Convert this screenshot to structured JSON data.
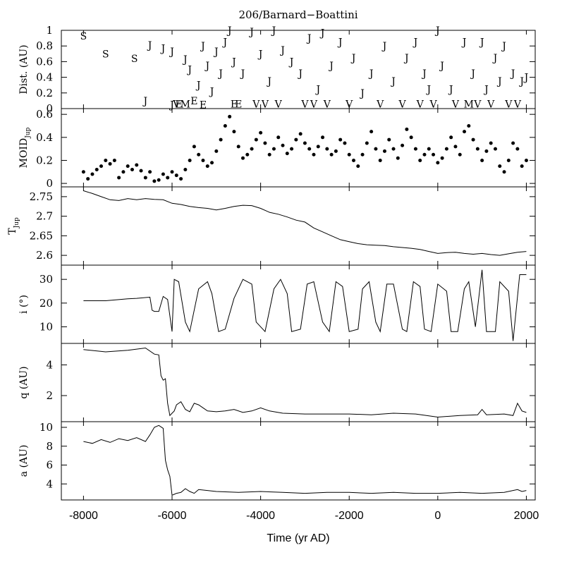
{
  "chart_data": {
    "type": "line",
    "title": "206/Barnard−Boattini",
    "xlabel": "Time (yr AD)",
    "xlim": [
      -8500,
      2200
    ],
    "xticks": [
      -8000,
      -6000,
      -4000,
      -2000,
      0,
      2000
    ],
    "xtick_labels": [
      "-8000",
      "-6000",
      "-4000",
      "-2000",
      "0",
      "2000"
    ],
    "grid": false,
    "panels": [
      {
        "id": "dist",
        "type": "scatter",
        "ylabel": "Dist. (AU)",
        "ylim": [
          0,
          1
        ],
        "yticks": [
          0,
          0.2,
          0.4,
          0.6,
          0.8,
          1
        ],
        "ytick_labels": [
          "0",
          "0.2",
          "0.4",
          "0.6",
          "0.8",
          "1"
        ],
        "encounters": [
          {
            "t": -8000,
            "d": 0.93,
            "p": "S"
          },
          {
            "t": -7500,
            "d": 0.7,
            "p": "S"
          },
          {
            "t": -6850,
            "d": 0.64,
            "p": "S"
          },
          {
            "t": -6600,
            "d": 0.1,
            "p": "J"
          },
          {
            "t": -6500,
            "d": 0.81,
            "p": "J"
          },
          {
            "t": -6200,
            "d": 0.77,
            "p": "J"
          },
          {
            "t": -6000,
            "d": 0.05,
            "p": "J"
          },
          {
            "t": -6000,
            "d": 0.73,
            "p": "J"
          },
          {
            "t": -5900,
            "d": 0.06,
            "p": "V"
          },
          {
            "t": -5850,
            "d": 0.06,
            "p": "E"
          },
          {
            "t": -5700,
            "d": 0.63,
            "p": "J"
          },
          {
            "t": -5700,
            "d": 0.06,
            "p": "M"
          },
          {
            "t": -5600,
            "d": 0.5,
            "p": "J"
          },
          {
            "t": -5500,
            "d": 0.1,
            "p": "E"
          },
          {
            "t": -5400,
            "d": 0.3,
            "p": "J"
          },
          {
            "t": -5300,
            "d": 0.05,
            "p": "E"
          },
          {
            "t": -5300,
            "d": 0.8,
            "p": "J"
          },
          {
            "t": -5200,
            "d": 0.55,
            "p": "J"
          },
          {
            "t": -5100,
            "d": 0.22,
            "p": "J"
          },
          {
            "t": -5000,
            "d": 0.73,
            "p": "J"
          },
          {
            "t": -4900,
            "d": 0.45,
            "p": "J"
          },
          {
            "t": -4800,
            "d": 0.85,
            "p": "J"
          },
          {
            "t": -4700,
            "d": 1.0,
            "p": "J"
          },
          {
            "t": -4600,
            "d": 0.06,
            "p": "E"
          },
          {
            "t": -4600,
            "d": 0.6,
            "p": "J"
          },
          {
            "t": -4500,
            "d": 0.06,
            "p": "E"
          },
          {
            "t": -4400,
            "d": 0.45,
            "p": "J"
          },
          {
            "t": -4200,
            "d": 0.98,
            "p": "J"
          },
          {
            "t": -4100,
            "d": 0.06,
            "p": "V"
          },
          {
            "t": -4000,
            "d": 0.7,
            "p": "J"
          },
          {
            "t": -3900,
            "d": 0.06,
            "p": "V"
          },
          {
            "t": -3800,
            "d": 0.35,
            "p": "J"
          },
          {
            "t": -3700,
            "d": 1.0,
            "p": "J"
          },
          {
            "t": -3600,
            "d": 0.06,
            "p": "V"
          },
          {
            "t": -3500,
            "d": 0.75,
            "p": "J"
          },
          {
            "t": -3300,
            "d": 0.6,
            "p": "J"
          },
          {
            "t": -3100,
            "d": 0.45,
            "p": "J"
          },
          {
            "t": -3000,
            "d": 0.06,
            "p": "V"
          },
          {
            "t": -2900,
            "d": 0.9,
            "p": "J"
          },
          {
            "t": -2800,
            "d": 0.06,
            "p": "V"
          },
          {
            "t": -2700,
            "d": 0.25,
            "p": "J"
          },
          {
            "t": -2600,
            "d": 0.97,
            "p": "J"
          },
          {
            "t": -2500,
            "d": 0.06,
            "p": "V"
          },
          {
            "t": -2400,
            "d": 0.55,
            "p": "J"
          },
          {
            "t": -2200,
            "d": 0.85,
            "p": "J"
          },
          {
            "t": -2000,
            "d": 0.06,
            "p": "V"
          },
          {
            "t": -1900,
            "d": 0.65,
            "p": "J"
          },
          {
            "t": -1700,
            "d": 0.2,
            "p": "J"
          },
          {
            "t": -1500,
            "d": 0.45,
            "p": "J"
          },
          {
            "t": -1300,
            "d": 0.06,
            "p": "V"
          },
          {
            "t": -1200,
            "d": 0.8,
            "p": "J"
          },
          {
            "t": -1000,
            "d": 0.35,
            "p": "J"
          },
          {
            "t": -800,
            "d": 0.06,
            "p": "V"
          },
          {
            "t": -700,
            "d": 0.65,
            "p": "J"
          },
          {
            "t": -500,
            "d": 0.85,
            "p": "J"
          },
          {
            "t": -400,
            "d": 0.06,
            "p": "V"
          },
          {
            "t": -300,
            "d": 0.45,
            "p": "J"
          },
          {
            "t": -200,
            "d": 0.25,
            "p": "J"
          },
          {
            "t": -100,
            "d": 0.06,
            "p": "V"
          },
          {
            "t": 0,
            "d": 1.0,
            "p": "J"
          },
          {
            "t": 100,
            "d": 0.55,
            "p": "J"
          },
          {
            "t": 300,
            "d": 0.25,
            "p": "J"
          },
          {
            "t": 400,
            "d": 0.06,
            "p": "V"
          },
          {
            "t": 600,
            "d": 0.85,
            "p": "J"
          },
          {
            "t": 700,
            "d": 0.06,
            "p": "M"
          },
          {
            "t": 800,
            "d": 0.45,
            "p": "J"
          },
          {
            "t": 900,
            "d": 0.06,
            "p": "V"
          },
          {
            "t": 1000,
            "d": 0.85,
            "p": "J"
          },
          {
            "t": 1100,
            "d": 0.25,
            "p": "J"
          },
          {
            "t": 1200,
            "d": 0.06,
            "p": "V"
          },
          {
            "t": 1300,
            "d": 0.65,
            "p": "J"
          },
          {
            "t": 1400,
            "d": 0.35,
            "p": "J"
          },
          {
            "t": 1500,
            "d": 0.8,
            "p": "J"
          },
          {
            "t": 1600,
            "d": 0.06,
            "p": "V"
          },
          {
            "t": 1700,
            "d": 0.45,
            "p": "J"
          },
          {
            "t": 1800,
            "d": 0.06,
            "p": "V"
          },
          {
            "t": 1900,
            "d": 0.35,
            "p": "J"
          },
          {
            "t": 2000,
            "d": 0.4,
            "p": "J"
          }
        ]
      },
      {
        "id": "moid",
        "type": "scatter",
        "ylabel": "MOID",
        "ylabel_sub": "Jup",
        "ylim": [
          -0.03,
          0.65
        ],
        "yticks": [
          0,
          0.2,
          0.4,
          0.6
        ],
        "ytick_labels": [
          "0",
          "0.2",
          "0.4",
          "0.6"
        ],
        "x": [
          -8000,
          -7900,
          -7800,
          -7700,
          -7600,
          -7500,
          -7400,
          -7300,
          -7200,
          -7100,
          -7000,
          -6900,
          -6800,
          -6700,
          -6600,
          -6500,
          -6400,
          -6300,
          -6200,
          -6100,
          -6000,
          -5900,
          -5800,
          -5700,
          -5600,
          -5500,
          -5400,
          -5300,
          -5200,
          -5100,
          -5000,
          -4900,
          -4800,
          -4700,
          -4600,
          -4500,
          -4400,
          -4300,
          -4200,
          -4100,
          -4000,
          -3900,
          -3800,
          -3700,
          -3600,
          -3500,
          -3400,
          -3300,
          -3200,
          -3100,
          -3000,
          -2900,
          -2800,
          -2700,
          -2600,
          -2500,
          -2400,
          -2300,
          -2200,
          -2100,
          -2000,
          -1900,
          -1800,
          -1700,
          -1600,
          -1500,
          -1400,
          -1300,
          -1200,
          -1100,
          -1000,
          -900,
          -800,
          -700,
          -600,
          -500,
          -400,
          -300,
          -200,
          -100,
          0,
          100,
          200,
          300,
          400,
          500,
          600,
          700,
          800,
          900,
          1000,
          1100,
          1200,
          1300,
          1400,
          1500,
          1600,
          1700,
          1800,
          1900,
          2000
        ],
        "y": [
          0.1,
          0.04,
          0.08,
          0.12,
          0.15,
          0.2,
          0.17,
          0.2,
          0.05,
          0.1,
          0.15,
          0.12,
          0.16,
          0.11,
          0.05,
          0.1,
          0.02,
          0.03,
          0.08,
          0.05,
          0.1,
          0.07,
          0.04,
          0.12,
          0.2,
          0.32,
          0.25,
          0.2,
          0.15,
          0.18,
          0.28,
          0.38,
          0.5,
          0.58,
          0.45,
          0.32,
          0.22,
          0.25,
          0.3,
          0.38,
          0.44,
          0.35,
          0.25,
          0.3,
          0.4,
          0.33,
          0.26,
          0.3,
          0.38,
          0.43,
          0.35,
          0.3,
          0.25,
          0.32,
          0.4,
          0.3,
          0.25,
          0.28,
          0.38,
          0.35,
          0.25,
          0.2,
          0.15,
          0.25,
          0.35,
          0.45,
          0.3,
          0.2,
          0.28,
          0.38,
          0.3,
          0.22,
          0.33,
          0.47,
          0.4,
          0.3,
          0.2,
          0.25,
          0.3,
          0.25,
          0.18,
          0.22,
          0.3,
          0.4,
          0.32,
          0.25,
          0.45,
          0.5,
          0.38,
          0.3,
          0.2,
          0.28,
          0.35,
          0.3,
          0.15,
          0.1,
          0.2,
          0.35,
          0.3,
          0.15,
          0.2
        ]
      },
      {
        "id": "tjup",
        "type": "line",
        "ylabel": "T",
        "ylabel_sub": "Jup",
        "ylim": [
          2.575,
          2.775
        ],
        "yticks": [
          2.6,
          2.65,
          2.7,
          2.75
        ],
        "ytick_labels": [
          "2.6",
          "2.65",
          "2.7",
          "2.75"
        ],
        "x": [
          -8000,
          -7800,
          -7600,
          -7400,
          -7200,
          -7000,
          -6800,
          -6600,
          -6400,
          -6200,
          -6000,
          -5800,
          -5600,
          -5400,
          -5200,
          -5000,
          -4800,
          -4600,
          -4400,
          -4200,
          -4000,
          -3800,
          -3600,
          -3400,
          -3200,
          -3000,
          -2800,
          -2600,
          -2400,
          -2200,
          -2000,
          -1800,
          -1600,
          -1400,
          -1200,
          -1000,
          -800,
          -600,
          -400,
          -200,
          0,
          200,
          400,
          600,
          800,
          1000,
          1200,
          1400,
          1600,
          1800,
          2000
        ],
        "y": [
          2.765,
          2.758,
          2.75,
          2.742,
          2.74,
          2.745,
          2.742,
          2.745,
          2.743,
          2.742,
          2.733,
          2.73,
          2.725,
          2.722,
          2.72,
          2.716,
          2.72,
          2.725,
          2.728,
          2.727,
          2.72,
          2.71,
          2.705,
          2.698,
          2.69,
          2.685,
          2.67,
          2.66,
          2.65,
          2.64,
          2.635,
          2.63,
          2.627,
          2.626,
          2.625,
          2.622,
          2.62,
          2.618,
          2.615,
          2.61,
          2.605,
          2.607,
          2.608,
          2.605,
          2.603,
          2.605,
          2.602,
          2.6,
          2.604,
          2.608,
          2.61
        ]
      },
      {
        "id": "incl",
        "type": "line",
        "ylabel": "i (°)",
        "ylim": [
          3,
          36
        ],
        "yticks": [
          10,
          20,
          30
        ],
        "ytick_labels": [
          "10",
          "20",
          "30"
        ],
        "x": [
          -8000,
          -7500,
          -7000,
          -6800,
          -6500,
          -6450,
          -6400,
          -6300,
          -6200,
          -6100,
          -6000,
          -5950,
          -5850,
          -5700,
          -5600,
          -5400,
          -5200,
          -5100,
          -4950,
          -4800,
          -4600,
          -4400,
          -4200,
          -4100,
          -3900,
          -3700,
          -3550,
          -3400,
          -3300,
          -3100,
          -2950,
          -2800,
          -2600,
          -2450,
          -2300,
          -2150,
          -2000,
          -1800,
          -1700,
          -1550,
          -1400,
          -1300,
          -1150,
          -1000,
          -800,
          -700,
          -550,
          -400,
          -300,
          -150,
          0,
          200,
          300,
          450,
          600,
          700,
          850,
          1000,
          1100,
          1300,
          1400,
          1600,
          1700,
          1850,
          2000
        ],
        "y": [
          21,
          21,
          21.8,
          22,
          22.5,
          17,
          16.5,
          16.5,
          22.8,
          21.5,
          8,
          30,
          29,
          12,
          8,
          26,
          29,
          24,
          8,
          9,
          22,
          30,
          28,
          12,
          8,
          26,
          30,
          24,
          8,
          9,
          28,
          29,
          12,
          8,
          29,
          27,
          8,
          9,
          26,
          29,
          12,
          8,
          28,
          28,
          9,
          8,
          29,
          27,
          9,
          8,
          28,
          25,
          8,
          8,
          26,
          29,
          10,
          34,
          8,
          8,
          29,
          25,
          4,
          32,
          32
        ]
      },
      {
        "id": "q",
        "type": "line",
        "ylabel": "q (AU)",
        "ylim": [
          0.3,
          5.4
        ],
        "yticks": [
          2,
          4
        ],
        "ytick_labels": [
          "2",
          "4"
        ],
        "x": [
          -8000,
          -7500,
          -7000,
          -6600,
          -6400,
          -6300,
          -6250,
          -6200,
          -6150,
          -6100,
          -6050,
          -6000,
          -5950,
          -5900,
          -5800,
          -5700,
          -5600,
          -5500,
          -5400,
          -5300,
          -5200,
          -5000,
          -4800,
          -4600,
          -4400,
          -4200,
          -4000,
          -3800,
          -3500,
          -3000,
          -2500,
          -2000,
          -1500,
          -1000,
          -500,
          0,
          500,
          900,
          1000,
          1100,
          1500,
          1700,
          1800,
          1900,
          2000
        ],
        "y": [
          5,
          4.85,
          4.95,
          5.1,
          4.7,
          4.65,
          3.3,
          3.0,
          3.1,
          1.5,
          0.7,
          0.85,
          1.0,
          1.4,
          1.6,
          1.1,
          0.95,
          1.5,
          1.4,
          1.2,
          1.0,
          0.95,
          1.0,
          1.1,
          0.9,
          1.0,
          1.2,
          1.0,
          0.85,
          0.8,
          0.8,
          0.8,
          0.75,
          0.85,
          0.8,
          0.6,
          0.7,
          0.75,
          1.1,
          0.75,
          0.8,
          0.7,
          1.5,
          1.0,
          0.9
        ]
      },
      {
        "id": "a",
        "type": "line",
        "ylabel": "a (AU)",
        "ylim": [
          2.3,
          10.6
        ],
        "yticks": [
          4,
          6,
          8,
          10
        ],
        "ytick_labels": [
          "4",
          "6",
          "8",
          "10"
        ],
        "x": [
          -8000,
          -7800,
          -7600,
          -7400,
          -7200,
          -7000,
          -6800,
          -6600,
          -6500,
          -6400,
          -6300,
          -6200,
          -6150,
          -6100,
          -6050,
          -6000,
          -5950,
          -5900,
          -5800,
          -5700,
          -5600,
          -5500,
          -5400,
          -5000,
          -4500,
          -4000,
          -3500,
          -3000,
          -2500,
          -2000,
          -1500,
          -1000,
          -500,
          0,
          500,
          1000,
          1500,
          1800,
          1900,
          2000
        ],
        "y": [
          8.5,
          8.3,
          8.7,
          8.4,
          8.8,
          8.6,
          8.9,
          8.5,
          9.2,
          10.0,
          10.2,
          9.9,
          6.5,
          5.5,
          4.8,
          2.8,
          2.9,
          3.0,
          3.1,
          3.5,
          3.2,
          3.0,
          3.4,
          3.2,
          3.1,
          3.2,
          3.1,
          3.0,
          3.1,
          3.1,
          3.0,
          3.1,
          3.0,
          3.0,
          3.1,
          3.0,
          3.1,
          3.4,
          3.2,
          3.3
        ]
      }
    ]
  }
}
